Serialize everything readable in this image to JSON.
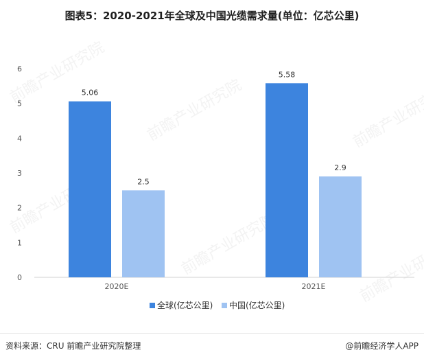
{
  "title": "图表5：2020-2021年全球及中国光缆需求量(单位：亿芯公里)",
  "footer": {
    "source": "资料来源：CRU 前瞻产业研究院整理",
    "brand": "@前瞻经济学人APP"
  },
  "watermark": {
    "text": "前瞻产业研究院"
  },
  "chart_data": {
    "type": "bar",
    "categories": [
      "2020E",
      "2021E"
    ],
    "series": [
      {
        "name": "全球(亿芯公里)",
        "values": [
          5.06,
          5.58
        ],
        "color": "#3d84de"
      },
      {
        "name": "中国(亿芯公里)",
        "values": [
          2.5,
          2.9
        ],
        "color": "#9fc3f2"
      }
    ],
    "ylim": [
      0,
      6
    ],
    "yticks": [
      "0",
      "1",
      "2",
      "3",
      "4",
      "5",
      "6"
    ],
    "data_labels": [
      [
        "5.06",
        "5.58"
      ],
      [
        "2.5",
        "2.9"
      ]
    ],
    "legend_position": "bottom",
    "grid": false
  }
}
